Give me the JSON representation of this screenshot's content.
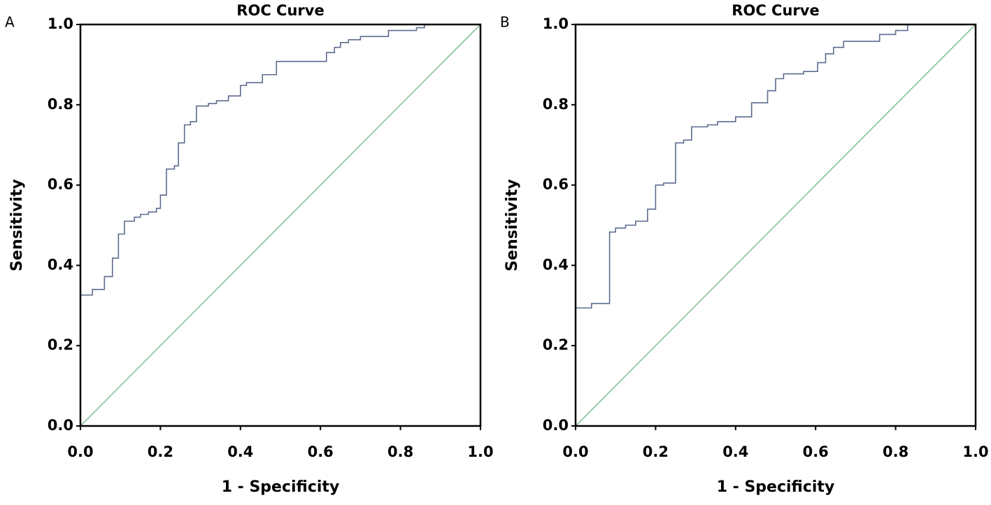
{
  "chart_data": [
    {
      "type": "line",
      "panel_label": "A",
      "title": "ROC Curve",
      "xlabel": "1 - Specificity",
      "ylabel": "Sensitivity",
      "xlim": [
        0,
        1
      ],
      "ylim": [
        0,
        1
      ],
      "xticks": [
        {
          "value": 0,
          "label": "0.0"
        },
        0.2,
        0.4,
        0.6,
        0.8,
        {
          "value": 1,
          "label": "1.0"
        }
      ],
      "yticks": [
        {
          "value": 0,
          "label": "0.0"
        },
        0.2,
        0.4,
        0.6,
        0.8,
        {
          "value": 1,
          "label": "1.0"
        }
      ],
      "series": [
        {
          "color": "#5d6b8e",
          "step": true,
          "x": [
            0,
            0,
            0.03,
            0.03,
            0.06,
            0.06,
            0.08,
            0.08,
            0.095,
            0.095,
            0.11,
            0.11,
            0.135,
            0.135,
            0.15,
            0.15,
            0.17,
            0.17,
            0.19,
            0.19,
            0.2,
            0.2,
            0.215,
            0.215,
            0.235,
            0.235,
            0.245,
            0.245,
            0.26,
            0.26,
            0.275,
            0.275,
            0.29,
            0.29,
            0.32,
            0.32,
            0.34,
            0.34,
            0.37,
            0.37,
            0.4,
            0.4,
            0.415,
            0.415,
            0.455,
            0.455,
            0.49,
            0.49,
            0.615,
            0.615,
            0.635,
            0.635,
            0.65,
            0.65,
            0.67,
            0.67,
            0.7,
            0.7,
            0.77,
            0.77,
            0.84,
            0.84,
            0.86,
            0.86,
            1
          ],
          "values": [
            0,
            0.326,
            0.326,
            0.34,
            0.34,
            0.372,
            0.372,
            0.418,
            0.418,
            0.478,
            0.478,
            0.51,
            0.51,
            0.52,
            0.52,
            0.527,
            0.527,
            0.533,
            0.533,
            0.542,
            0.542,
            0.575,
            0.575,
            0.64,
            0.64,
            0.648,
            0.648,
            0.705,
            0.705,
            0.75,
            0.75,
            0.758,
            0.758,
            0.797,
            0.797,
            0.803,
            0.803,
            0.81,
            0.81,
            0.822,
            0.822,
            0.848,
            0.848,
            0.855,
            0.855,
            0.875,
            0.875,
            0.908,
            0.908,
            0.93,
            0.93,
            0.943,
            0.943,
            0.955,
            0.955,
            0.962,
            0.962,
            0.97,
            0.97,
            0.985,
            0.985,
            0.992,
            0.992,
            1,
            1
          ]
        },
        {
          "color": "#86c49a",
          "x": [
            0,
            1
          ],
          "values": [
            0,
            1
          ]
        }
      ]
    },
    {
      "type": "line",
      "panel_label": "B",
      "title": "ROC Curve",
      "xlabel": "1 - Specificity",
      "ylabel": "Sensitivity",
      "xlim": [
        0,
        1
      ],
      "ylim": [
        0,
        1
      ],
      "xticks": [
        {
          "value": 0,
          "label": "0.0"
        },
        0.2,
        0.4,
        0.6,
        0.8,
        {
          "value": 1,
          "label": "1.0"
        }
      ],
      "yticks": [
        {
          "value": 0,
          "label": "0.0"
        },
        0.2,
        0.4,
        0.6,
        0.8,
        {
          "value": 1,
          "label": "1.0"
        }
      ],
      "series": [
        {
          "color": "#5d6b8e",
          "step": true,
          "x": [
            0,
            0,
            0.04,
            0.04,
            0.085,
            0.085,
            0.1,
            0.1,
            0.125,
            0.125,
            0.15,
            0.15,
            0.18,
            0.18,
            0.2,
            0.2,
            0.22,
            0.22,
            0.25,
            0.25,
            0.27,
            0.27,
            0.29,
            0.29,
            0.33,
            0.33,
            0.355,
            0.355,
            0.4,
            0.4,
            0.44,
            0.44,
            0.48,
            0.48,
            0.5,
            0.5,
            0.52,
            0.52,
            0.57,
            0.57,
            0.605,
            0.605,
            0.625,
            0.625,
            0.645,
            0.645,
            0.67,
            0.67,
            0.76,
            0.76,
            0.8,
            0.8,
            0.83,
            0.83,
            1
          ],
          "values": [
            0,
            0.294,
            0.294,
            0.305,
            0.305,
            0.483,
            0.483,
            0.493,
            0.493,
            0.5,
            0.5,
            0.51,
            0.51,
            0.54,
            0.54,
            0.6,
            0.6,
            0.605,
            0.605,
            0.705,
            0.705,
            0.712,
            0.712,
            0.745,
            0.745,
            0.75,
            0.75,
            0.758,
            0.758,
            0.77,
            0.77,
            0.805,
            0.805,
            0.835,
            0.835,
            0.865,
            0.865,
            0.877,
            0.877,
            0.883,
            0.883,
            0.905,
            0.905,
            0.927,
            0.927,
            0.943,
            0.943,
            0.958,
            0.958,
            0.975,
            0.975,
            0.985,
            0.985,
            1,
            1
          ]
        },
        {
          "color": "#86c49a",
          "x": [
            0,
            1
          ],
          "values": [
            0,
            1
          ]
        }
      ]
    }
  ]
}
